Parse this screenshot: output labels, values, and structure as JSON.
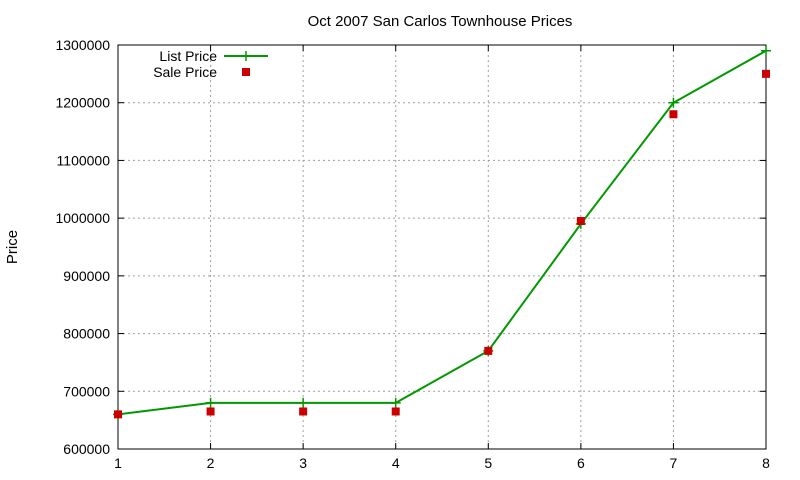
{
  "chart_data": {
    "type": "line",
    "title": "Oct 2007 San Carlos Townhouse Prices",
    "xlabel": "",
    "ylabel": "Price",
    "x": [
      1,
      2,
      3,
      4,
      5,
      6,
      7,
      8
    ],
    "xlim": [
      1,
      8
    ],
    "ylim": [
      600000,
      1300000
    ],
    "xticks": [
      1,
      2,
      3,
      4,
      5,
      6,
      7,
      8
    ],
    "yticks": [
      600000,
      700000,
      800000,
      900000,
      1000000,
      1100000,
      1200000,
      1300000
    ],
    "grid": true,
    "legend_position": "top-left",
    "series": [
      {
        "name": "List Price",
        "style": "lines+points",
        "marker": "plus",
        "color": "#009900",
        "values": [
          660000,
          680000,
          680000,
          680000,
          770000,
          990000,
          1200000,
          1290000
        ]
      },
      {
        "name": "Sale Price",
        "style": "points",
        "marker": "square",
        "color": "#cc0000",
        "values": [
          660000,
          665000,
          665000,
          665000,
          770000,
          995000,
          1180000,
          1250000
        ]
      }
    ]
  }
}
